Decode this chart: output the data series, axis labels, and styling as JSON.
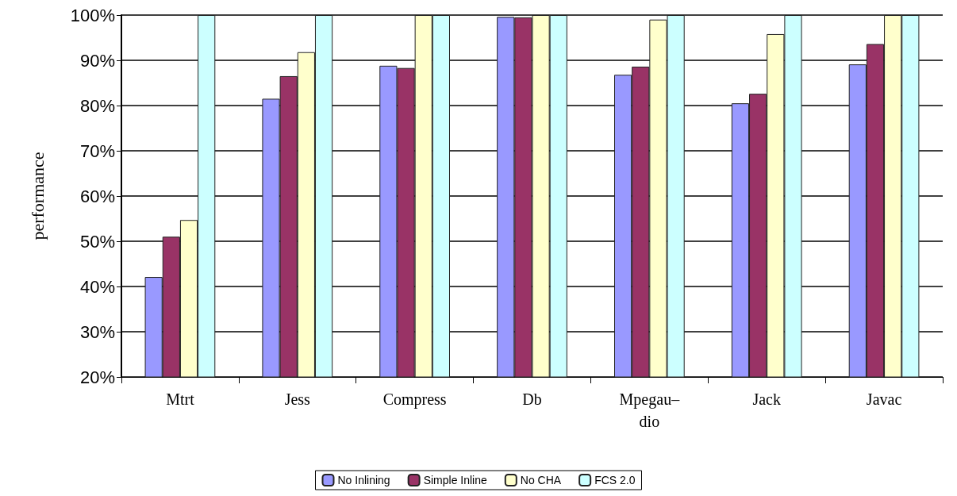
{
  "chart_data": {
    "type": "bar",
    "ylabel": "performance",
    "categories": [
      "Mtrt",
      "Jess",
      "Compress",
      "Db",
      "Mpegau–\ndio",
      "Jack",
      "Javac"
    ],
    "series": [
      {
        "name": "No Inlining",
        "color": "#9999ff",
        "values": [
          42.1,
          81.5,
          88.8,
          99.6,
          86.8,
          80.5,
          89.1
        ]
      },
      {
        "name": "Simple Inline",
        "color": "#993366",
        "values": [
          51,
          86.5,
          88.3,
          99.5,
          88.6,
          82.6,
          93.6
        ]
      },
      {
        "name": "No CHA",
        "color": "#ffffcc",
        "values": [
          54.7,
          91.8,
          100,
          100,
          99,
          95.8,
          100
        ]
      },
      {
        "name": "FCS 2.0",
        "color": "#ccffff",
        "values": [
          100,
          100,
          100,
          100,
          100,
          100,
          100
        ]
      }
    ],
    "ylim": [
      20,
      100
    ],
    "yticks": [
      {
        "value": 20,
        "label": "20%"
      },
      {
        "value": 30,
        "label": "30%"
      },
      {
        "value": 40,
        "label": "40%"
      },
      {
        "value": 50,
        "label": "50%"
      },
      {
        "value": 60,
        "label": "60%"
      },
      {
        "value": 70,
        "label": "70%"
      },
      {
        "value": 80,
        "label": "80%"
      },
      {
        "value": 90,
        "label": "90%"
      },
      {
        "value": 100,
        "label": "100%"
      }
    ],
    "grid": "y",
    "legend": "bottom"
  }
}
